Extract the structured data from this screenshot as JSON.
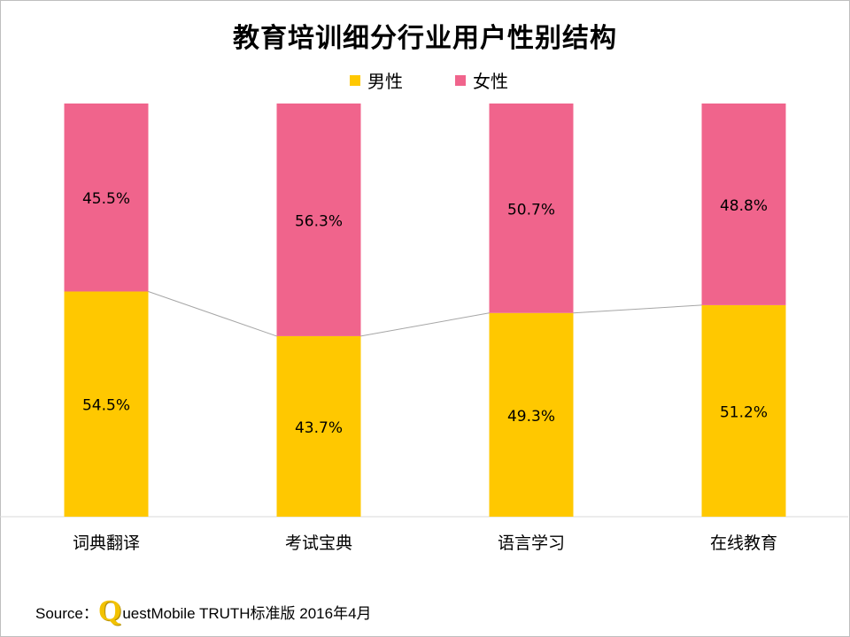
{
  "chart_data": {
    "type": "bar",
    "stacked": true,
    "percent_stacked": true,
    "title": "教育培训细分行业用户性别结构",
    "categories": [
      "词典翻译",
      "考试宝典",
      "语言学习",
      "在线教育"
    ],
    "series": [
      {
        "name": "男性",
        "color": "#ffc800",
        "values": [
          54.5,
          43.7,
          49.3,
          51.2
        ],
        "labels": [
          "54.5%",
          "43.7%",
          "49.3%",
          "51.2%"
        ]
      },
      {
        "name": "女性",
        "color": "#f0648c",
        "values": [
          45.5,
          56.3,
          50.7,
          48.8
        ],
        "labels": [
          "45.5%",
          "56.3%",
          "50.7%",
          "48.8%"
        ]
      }
    ],
    "ylim": [
      0,
      100
    ],
    "legend": "top-center",
    "grid": false,
    "series_lines": true
  },
  "source": {
    "label": "Source：",
    "logo_letter": "Q",
    "text": "uestMobile TRUTH标准版 2016年4月"
  }
}
